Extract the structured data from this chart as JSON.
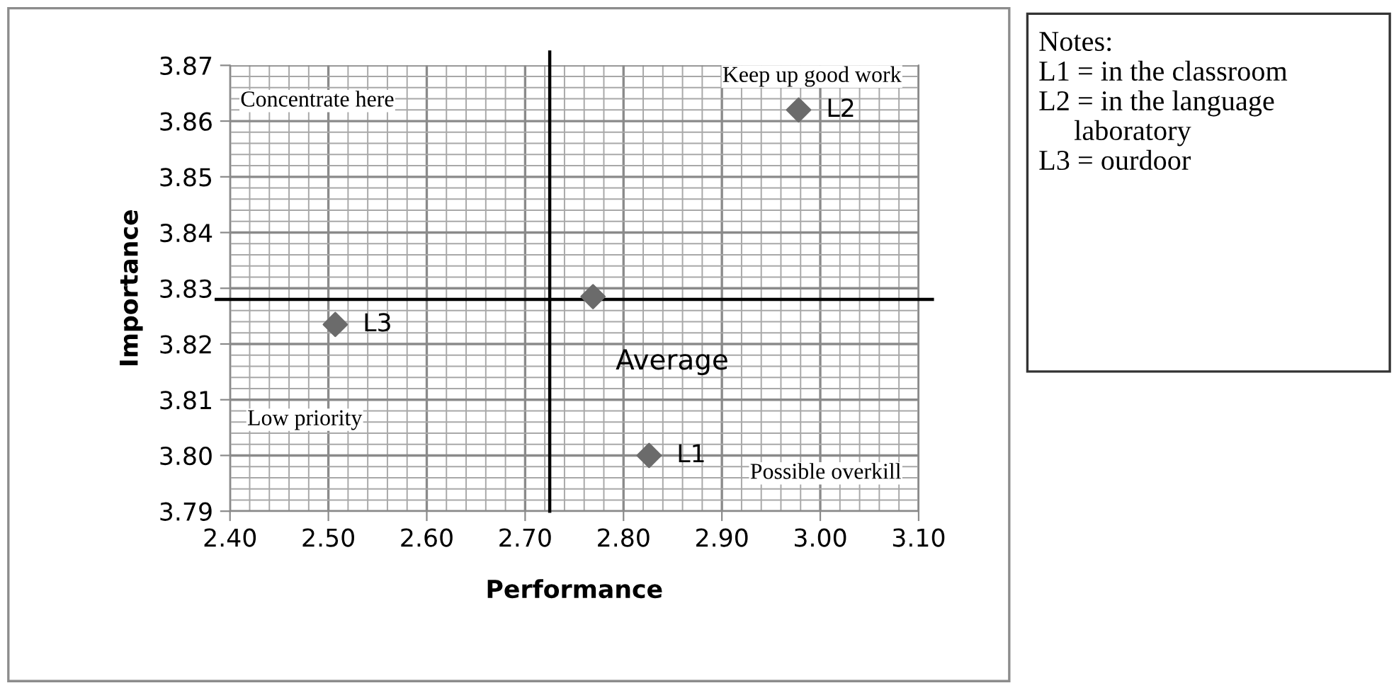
{
  "chart_data": {
    "type": "scatter",
    "xlabel": "Performance",
    "ylabel": "Importance",
    "x": [
      2.826,
      2.978,
      2.507,
      2.769
    ],
    "series": [
      {
        "color": "#6b6b6b",
        "values": [
          3.8,
          3.862,
          3.8235,
          3.8285
        ]
      }
    ],
    "marker": "diamond",
    "xlim": [
      2.4,
      3.1
    ],
    "xticks": [
      {
        "value": 2.4,
        "label": "2.40"
      },
      {
        "value": 2.5,
        "label": "2.50"
      },
      {
        "value": 2.6,
        "label": "2.60"
      },
      {
        "value": 2.7,
        "label": "2.70"
      },
      {
        "value": 2.8,
        "label": "2.80"
      },
      {
        "value": 2.9,
        "label": "2.90"
      },
      {
        "value": 3.0,
        "label": "3.00"
      },
      {
        "value": 3.1,
        "label": "3.10"
      }
    ],
    "ylim": [
      3.79,
      3.87
    ],
    "yticks": [
      {
        "value": 3.79,
        "label": "3.79"
      },
      {
        "value": 3.8,
        "label": "3.80"
      },
      {
        "value": 3.81,
        "label": "3.81"
      },
      {
        "value": 3.82,
        "label": "3.82"
      },
      {
        "value": 3.83,
        "label": "3.83"
      },
      {
        "value": 3.84,
        "label": "3.84"
      },
      {
        "value": 3.85,
        "label": "3.85"
      },
      {
        "value": 3.86,
        "label": "3.86"
      },
      {
        "value": 3.87,
        "label": "3.87"
      }
    ],
    "grid": true,
    "ref_lines": [
      {
        "axis": "x",
        "value": 2.725,
        "color": "#000000"
      },
      {
        "axis": "y",
        "value": 3.828,
        "color": "#000000"
      }
    ],
    "annotations": [
      {
        "text": "L1",
        "x": 2.826,
        "y": 3.8
      },
      {
        "text": "L2",
        "x": 2.978,
        "y": 3.862
      },
      {
        "text": "L3",
        "x": 2.507,
        "y": 3.8235
      },
      "Average",
      "Concentrate here",
      "Keep up good work",
      "Low priority",
      "Possible overkill",
      "Notes:",
      "L1 = in the classroom",
      "L2 = in the language laboratory",
      "L3 = ourdoor"
    ]
  }
}
